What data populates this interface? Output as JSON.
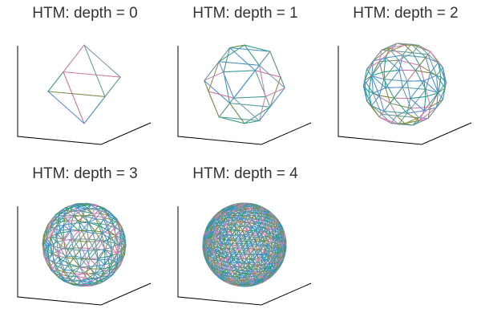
{
  "chart_data": [
    {
      "type": "wireframe-3d",
      "title": "HTM: depth = 0",
      "depth": 0,
      "grid": false
    },
    {
      "type": "wireframe-3d",
      "title": "HTM: depth = 1",
      "depth": 1,
      "grid": false
    },
    {
      "type": "wireframe-3d",
      "title": "HTM: depth = 2",
      "depth": 2,
      "grid": false
    },
    {
      "type": "wireframe-3d",
      "title": "HTM: depth = 3",
      "depth": 3,
      "grid": false
    },
    {
      "type": "wireframe-3d",
      "title": "HTM: depth = 4",
      "depth": 4,
      "grid": false
    }
  ],
  "colors": {
    "series": [
      "#1f9e89",
      "#6b8e23",
      "#d66bb5",
      "#4a90d9",
      "#8c8c3c",
      "#2aa198",
      "#e07ab8",
      "#5f9ea0"
    ],
    "title": "#333333",
    "axes": "#000000",
    "background": "#ffffff"
  }
}
